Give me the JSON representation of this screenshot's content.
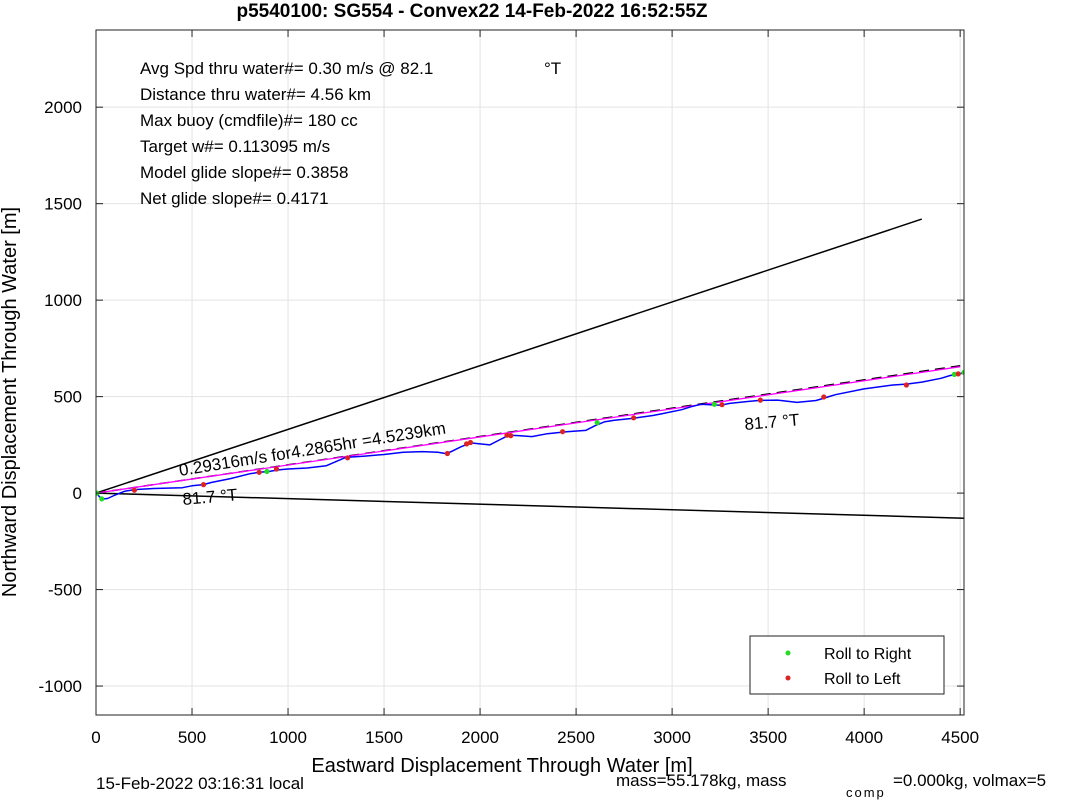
{
  "chart_data": {
    "type": "line",
    "title": "p5540100: SG554 - Convex22 14-Feb-2022 16:52:55Z",
    "xlabel": "Eastward Displacement Through Water [m]",
    "ylabel": "Northward Displacement Through Water [m]",
    "xlim": [
      0,
      4520
    ],
    "ylim": [
      -1150,
      2400
    ],
    "xticks": [
      "0",
      "500",
      "1000",
      "1500",
      "2000",
      "2500",
      "3000",
      "3500",
      "4000",
      "4500"
    ],
    "yticks": [
      "-1000",
      "-500",
      "0",
      "500",
      "1000",
      "1500",
      "2000"
    ],
    "grid": true,
    "info_lines": [
      "Avg Spd thru water#=  0.30 m/s @  82.1",
      "Distance thru water#=  4.56 km",
      "Max buoy (cmdfile)#= 180 cc",
      "Target w#= 0.113095 m/s",
      "Model glide slope#= 0.3858",
      "Net glide slope#= 0.4171"
    ],
    "info_unit": "°T",
    "annotations": {
      "speed": "0.29316m/s for4.2865hr =4.5239km",
      "heading_left": "81.7 °T",
      "heading_right": "81.7 °T"
    },
    "legend": {
      "location": "bottom-right",
      "entries": [
        {
          "label": "Roll to Right",
          "color": "#22dd22"
        },
        {
          "label": "Roll to Left",
          "color": "#dd2222"
        }
      ]
    },
    "series": [
      {
        "style": "envelope",
        "color": "#000000",
        "x": [
          0,
          4300
        ],
        "y": [
          0,
          1420
        ]
      },
      {
        "style": "envelope",
        "color": "#000000",
        "x": [
          0,
          4520
        ],
        "y": [
          0,
          -130
        ]
      },
      {
        "style": "mean-track-dashed",
        "color": "#000000",
        "x": [
          0,
          4500
        ],
        "y": [
          0,
          660
        ]
      },
      {
        "style": "mean-track",
        "color": "#ff00ff",
        "x": [
          0,
          4500
        ],
        "y": [
          0,
          655
        ]
      },
      {
        "style": "track",
        "color": "#0000ff",
        "x": [
          0,
          20,
          40,
          60,
          100,
          150,
          200,
          300,
          450,
          500,
          560,
          600,
          700,
          800,
          850,
          900,
          950,
          1000,
          1100,
          1200,
          1300,
          1400,
          1500,
          1600,
          1700,
          1780,
          1820,
          1850,
          1900,
          1950,
          2000,
          2050,
          2100,
          2150,
          2200,
          2270,
          2350,
          2450,
          2550,
          2600,
          2650,
          2700,
          2800,
          2900,
          2950,
          3050,
          3100,
          3150,
          3250,
          3300,
          3400,
          3450,
          3550,
          3650,
          3750,
          3800,
          3850,
          4000,
          4150,
          4220,
          4300,
          4400,
          4450,
          4480,
          4520
        ],
        "y": [
          0,
          -20,
          -30,
          -28,
          -10,
          10,
          18,
          24,
          28,
          38,
          44,
          55,
          75,
          100,
          108,
          112,
          120,
          125,
          130,
          142,
          185,
          192,
          200,
          212,
          215,
          212,
          205,
          215,
          240,
          260,
          255,
          250,
          275,
          300,
          298,
          293,
          308,
          318,
          325,
          350,
          370,
          378,
          388,
          402,
          412,
          432,
          448,
          460,
          455,
          465,
          475,
          480,
          482,
          470,
          480,
          495,
          510,
          540,
          560,
          565,
          575,
          595,
          610,
          612,
          625
        ]
      },
      {
        "style": "roll-right",
        "color": "#22dd22",
        "x": [
          5,
          30,
          890,
          2610,
          3220,
          4470,
          4520
        ],
        "y": [
          0,
          -30,
          112,
          365,
          460,
          615,
          625
        ]
      },
      {
        "style": "roll-left",
        "color": "#dd2222",
        "x": [
          200,
          560,
          850,
          940,
          1310,
          1830,
          1930,
          1950,
          2140,
          2160,
          2430,
          2800,
          3260,
          3460,
          3790,
          4220,
          4490
        ],
        "y": [
          15,
          44,
          108,
          125,
          183,
          205,
          255,
          262,
          300,
          298,
          318,
          390,
          458,
          482,
          498,
          560,
          618
        ]
      }
    ]
  },
  "footer": {
    "local_time": "15-Feb-2022 03:16:31 local",
    "mass_text": "mass=55.178kg, mass",
    "comp_sub": "comp",
    "comp_text": "=0.000kg, volmax=5"
  }
}
